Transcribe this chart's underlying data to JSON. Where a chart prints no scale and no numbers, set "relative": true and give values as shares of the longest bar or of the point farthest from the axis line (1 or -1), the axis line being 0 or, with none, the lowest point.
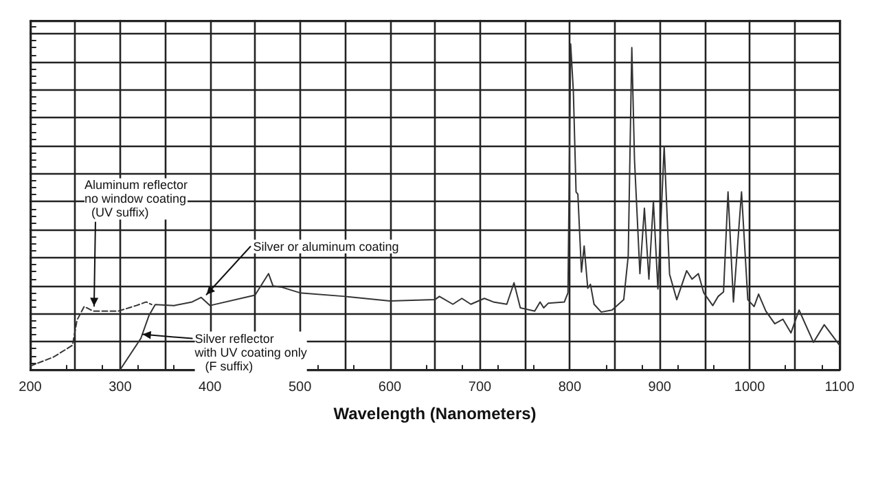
{
  "chart_data": {
    "type": "line",
    "relative": true,
    "xlabel": "Wavelength (Nanometers)",
    "xlim": [
      200,
      1100
    ],
    "xticks": [
      200,
      {
        "value": 250,
        "label": null
      },
      300,
      {
        "value": 350,
        "label": null
      },
      400,
      {
        "value": 450,
        "label": null
      },
      500,
      {
        "value": 550,
        "label": null
      },
      600,
      {
        "value": 650,
        "label": null
      },
      700,
      {
        "value": 750,
        "label": null
      },
      800,
      {
        "value": 850,
        "label": null
      },
      900,
      {
        "value": 950,
        "label": null
      },
      1000,
      {
        "value": 1050,
        "label": null
      },
      1100
    ],
    "grid": true,
    "marker": "none",
    "series": [
      {
        "color": "#333333",
        "line_style": "dashed",
        "x": [
          200,
          226,
          247,
          252,
          260,
          270,
          298,
          318,
          329,
          335
        ],
        "values": [
          0.011,
          0.039,
          0.075,
          0.152,
          0.194,
          0.18,
          0.18,
          0.197,
          0.208,
          0.2
        ]
      },
      {
        "color": "#333333",
        "line_style": "solid",
        "x": [
          300,
          323,
          332,
          339,
          360,
          380,
          390,
          400,
          450,
          465,
          470,
          480,
          500,
          550,
          600,
          650,
          655,
          670,
          680,
          690,
          705,
          715,
          730,
          738,
          745,
          761,
          767,
          771,
          776,
          794,
          798,
          801,
          802,
          804,
          807,
          809,
          813,
          816,
          820,
          823,
          827,
          835,
          847,
          860,
          865,
          869,
          872,
          878,
          883,
          888,
          893,
          898,
          899,
          905,
          911,
          919,
          930,
          936,
          943,
          949,
          959,
          965,
          971,
          976,
          982,
          991,
          998,
          1005,
          1010,
          1018,
          1028,
          1037,
          1046,
          1055,
          1071,
          1083,
          1100
        ],
        "values": [
          0,
          0.096,
          0.166,
          0.2,
          0.197,
          0.208,
          0.222,
          0.197,
          0.229,
          0.295,
          0.257,
          0.253,
          0.236,
          0.225,
          0.211,
          0.215,
          0.225,
          0.201,
          0.219,
          0.201,
          0.219,
          0.208,
          0.201,
          0.267,
          0.19,
          0.18,
          0.208,
          0.19,
          0.204,
          0.208,
          0.236,
          1.0,
          1.0,
          0.855,
          0.546,
          0.539,
          0.3,
          0.38,
          0.25,
          0.262,
          0.201,
          0.177,
          0.183,
          0.215,
          0.349,
          0.989,
          0.644,
          0.295,
          0.496,
          0.278,
          0.518,
          0.248,
          0.248,
          0.686,
          0.293,
          0.215,
          0.304,
          0.278,
          0.295,
          0.236,
          0.197,
          0.225,
          0.239,
          0.546,
          0.208,
          0.546,
          0.215,
          0.194,
          0.232,
          0.18,
          0.141,
          0.155,
          0.113,
          0.183,
          0.084,
          0.138,
          0.075
        ]
      }
    ],
    "annotations": [
      {
        "text": "Aluminum reflector\nno window coating\n  (UV suffix)",
        "x": 271,
        "y": 0.187
      },
      {
        "text": "Silver or aluminum coating",
        "x": 396,
        "y": 0.222
      },
      {
        "text": "Silver reflector\nwith UV coating only\n   (F suffix)",
        "x": 325,
        "y": 0.1
      }
    ]
  }
}
